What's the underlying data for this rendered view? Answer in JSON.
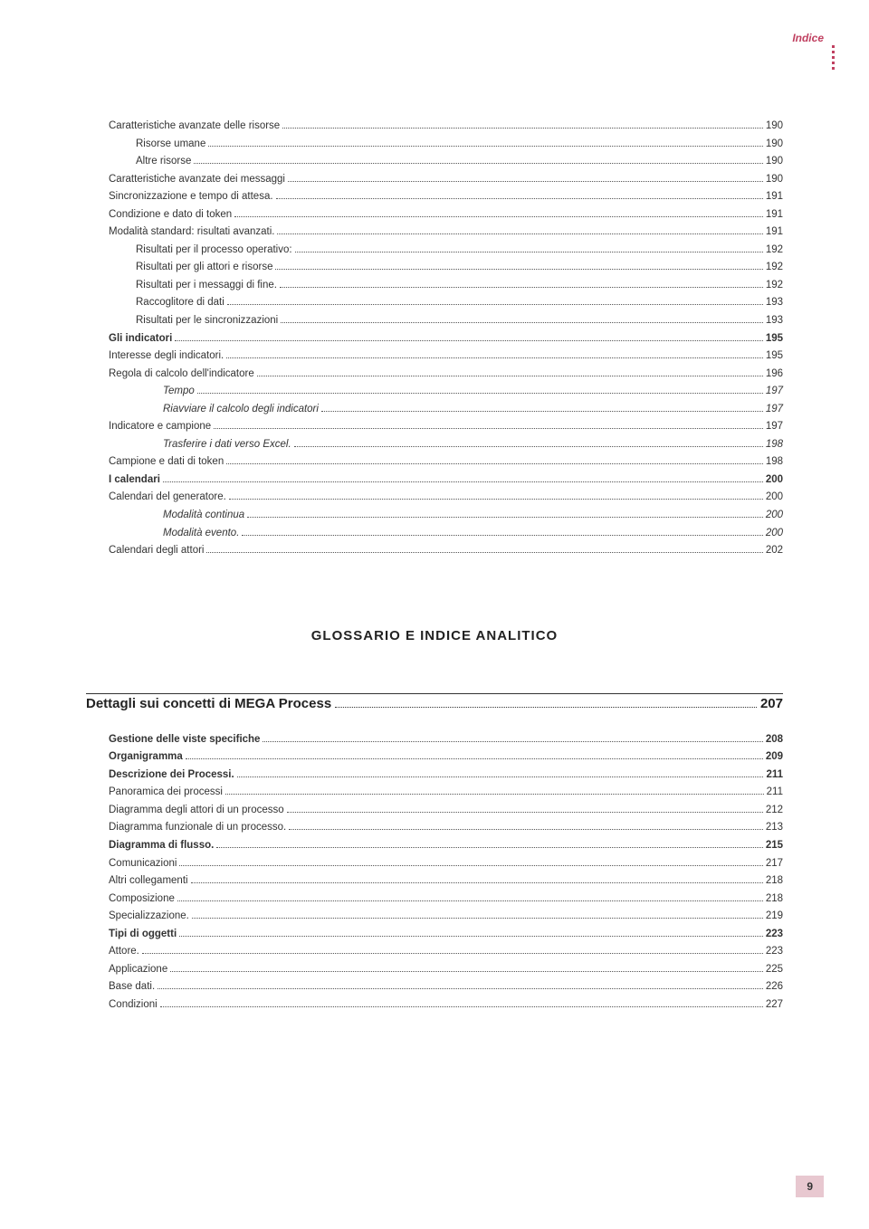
{
  "header": {
    "label": "Indice"
  },
  "page_number": "9",
  "section_title": "GLOSSARIO E INDICE ANALITICO",
  "section_subtitle": {
    "label": "Dettagli sui concetti di MEGA Process",
    "page": "207"
  },
  "colors": {
    "accent": "#c04060",
    "text": "#333333",
    "page_bg": "#ffffff",
    "footer_bg": "#e8c8d0"
  },
  "toc_block1": [
    {
      "label": "Caratteristiche avanzate delle risorse",
      "page": "190",
      "indent": 0,
      "bold": false,
      "italic": false
    },
    {
      "label": "Risorse umane",
      "page": "190",
      "indent": 1,
      "bold": false,
      "italic": false
    },
    {
      "label": "Altre risorse",
      "page": "190",
      "indent": 1,
      "bold": false,
      "italic": false
    },
    {
      "label": "Caratteristiche avanzate dei messaggi",
      "page": "190",
      "indent": 0,
      "bold": false,
      "italic": false
    },
    {
      "label": "Sincronizzazione e tempo di attesa.",
      "page": "191",
      "indent": 0,
      "bold": false,
      "italic": false
    },
    {
      "label": "Condizione e dato di token",
      "page": "191",
      "indent": 0,
      "bold": false,
      "italic": false
    },
    {
      "label": "Modalità standard: risultati avanzati.",
      "page": "191",
      "indent": 0,
      "bold": false,
      "italic": false
    },
    {
      "label": "Risultati per il processo operativo:",
      "page": "192",
      "indent": 1,
      "bold": false,
      "italic": false
    },
    {
      "label": "Risultati per gli attori e risorse",
      "page": "192",
      "indent": 1,
      "bold": false,
      "italic": false
    },
    {
      "label": "Risultati per i messaggi di fine.",
      "page": "192",
      "indent": 1,
      "bold": false,
      "italic": false
    },
    {
      "label": "Raccoglitore di dati",
      "page": "193",
      "indent": 1,
      "bold": false,
      "italic": false
    },
    {
      "label": "Risultati per le sincronizzazioni",
      "page": "193",
      "indent": 1,
      "bold": false,
      "italic": false
    },
    {
      "label": "Gli indicatori",
      "page": "195",
      "indent": 0,
      "bold": true,
      "italic": false
    },
    {
      "label": "Interesse degli indicatori.",
      "page": "195",
      "indent": 0,
      "bold": false,
      "italic": false
    },
    {
      "label": "Regola di calcolo dell'indicatore",
      "page": "196",
      "indent": 0,
      "bold": false,
      "italic": false
    },
    {
      "label": "Tempo",
      "page": "197",
      "indent": 2,
      "bold": false,
      "italic": true
    },
    {
      "label": "Riavviare il calcolo degli indicatori",
      "page": "197",
      "indent": 2,
      "bold": false,
      "italic": true
    },
    {
      "label": "Indicatore e campione",
      "page": "197",
      "indent": 0,
      "bold": false,
      "italic": false
    },
    {
      "label": "Trasferire i dati verso Excel.",
      "page": "198",
      "indent": 2,
      "bold": false,
      "italic": true
    },
    {
      "label": "Campione e dati di token",
      "page": "198",
      "indent": 0,
      "bold": false,
      "italic": false
    },
    {
      "label": "I calendari",
      "page": "200",
      "indent": 0,
      "bold": true,
      "italic": false
    },
    {
      "label": "Calendari del generatore.",
      "page": "200",
      "indent": 0,
      "bold": false,
      "italic": false
    },
    {
      "label": "Modalità continua",
      "page": "200",
      "indent": 2,
      "bold": false,
      "italic": true
    },
    {
      "label": "Modalità evento.",
      "page": "200",
      "indent": 2,
      "bold": false,
      "italic": true
    },
    {
      "label": "Calendari degli attori",
      "page": "202",
      "indent": 0,
      "bold": false,
      "italic": false
    }
  ],
  "toc_block2": [
    {
      "label": "Gestione delle viste specifiche",
      "page": "208",
      "indent": 0,
      "bold": true,
      "italic": false
    },
    {
      "label": "Organigramma",
      "page": "209",
      "indent": 0,
      "bold": true,
      "italic": false
    },
    {
      "label": "Descrizione dei Processi.",
      "page": "211",
      "indent": 0,
      "bold": true,
      "italic": false
    },
    {
      "label": "Panoramica dei processi",
      "page": "211",
      "indent": 0,
      "bold": false,
      "italic": false
    },
    {
      "label": "Diagramma degli attori di un processo",
      "page": "212",
      "indent": 0,
      "bold": false,
      "italic": false
    },
    {
      "label": "Diagramma funzionale di un processo.",
      "page": "213",
      "indent": 0,
      "bold": false,
      "italic": false
    },
    {
      "label": "Diagramma di flusso.",
      "page": "215",
      "indent": 0,
      "bold": true,
      "italic": false
    },
    {
      "label": "Comunicazioni",
      "page": "217",
      "indent": 0,
      "bold": false,
      "italic": false
    },
    {
      "label": "Altri collegamenti",
      "page": "218",
      "indent": 0,
      "bold": false,
      "italic": false
    },
    {
      "label": "Composizione",
      "page": "218",
      "indent": 0,
      "bold": false,
      "italic": false
    },
    {
      "label": "Specializzazione.",
      "page": "219",
      "indent": 0,
      "bold": false,
      "italic": false
    },
    {
      "label": "Tipi di oggetti",
      "page": "223",
      "indent": 0,
      "bold": true,
      "italic": false
    },
    {
      "label": "Attore.",
      "page": "223",
      "indent": 0,
      "bold": false,
      "italic": false
    },
    {
      "label": "Applicazione",
      "page": "225",
      "indent": 0,
      "bold": false,
      "italic": false
    },
    {
      "label": "Base dati.",
      "page": "226",
      "indent": 0,
      "bold": false,
      "italic": false
    },
    {
      "label": "Condizioni",
      "page": "227",
      "indent": 0,
      "bold": false,
      "italic": false
    }
  ]
}
